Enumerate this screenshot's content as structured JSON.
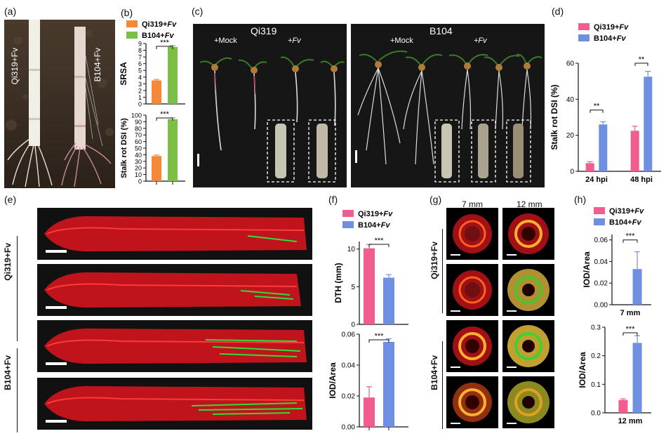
{
  "panels": {
    "a": {
      "label": "(a)",
      "sample_left": "Qi319+Fv",
      "sample_right": "B104+Fv"
    },
    "b": {
      "label": "(b)"
    },
    "c": {
      "label": "(c)",
      "left_title": "Qi319",
      "right_title": "B104",
      "mock": "+Mock",
      "fv": "+Fv"
    },
    "d": {
      "label": "(d)"
    },
    "e": {
      "label": "(e)",
      "group1": "Qi319+Fv",
      "group2": "B104+Fv"
    },
    "f": {
      "label": "(f)"
    },
    "g": {
      "label": "(g)",
      "col1": "7 mm",
      "col2": "12 mm",
      "group1": "Qi319+Fv",
      "group2": "B104+Fv"
    },
    "h": {
      "label": "(h)"
    }
  },
  "colors": {
    "orange": "#f5893a",
    "green": "#7bbf44",
    "pink": "#f25c8e",
    "blue": "#6f8fe0",
    "fluor_red": "#e8101a",
    "fluor_green": "#2fdc3a"
  },
  "chart_data": [
    {
      "id": "b-top",
      "type": "bar",
      "categories": [
        "Qi319+Fv",
        "B104+Fv"
      ],
      "values": [
        3.5,
        8.5
      ],
      "errors": [
        0.15,
        0.2
      ],
      "ylabel": "SRS_A",
      "ylim": [
        0,
        9
      ],
      "yticks": [
        0,
        1,
        2,
        3,
        4,
        5,
        6,
        7,
        8,
        9
      ],
      "significance": "***",
      "legend": [
        "Qi319+Fv",
        "B104+Fv"
      ]
    },
    {
      "id": "b-bottom",
      "type": "bar",
      "categories": [
        "Qi319+Fv",
        "B104+Fv"
      ],
      "values": [
        38,
        94
      ],
      "errors": [
        1.5,
        2
      ],
      "ylabel": "Stalk rot DSI (%)",
      "ylim": [
        0,
        100
      ],
      "yticks": [
        0,
        10,
        20,
        30,
        40,
        50,
        60,
        70,
        80,
        90,
        100
      ],
      "significance": "***"
    },
    {
      "id": "d",
      "type": "bar",
      "categories": [
        "24 hpi",
        "48 hpi"
      ],
      "series": [
        {
          "name": "Qi319+Fv",
          "values": [
            4.5,
            22.5
          ],
          "errors": [
            0.8,
            2.5
          ]
        },
        {
          "name": "B104+Fv",
          "values": [
            26,
            52.5
          ],
          "errors": [
            1.5,
            3
          ]
        }
      ],
      "ylabel": "Stalk rot DSI (%)",
      "ylim": [
        0,
        60
      ],
      "yticks": [
        0,
        20,
        40,
        60
      ],
      "significance": [
        "**",
        "**"
      ]
    },
    {
      "id": "f-top",
      "type": "bar",
      "categories": [
        "Qi319+Fv",
        "B104+Fv"
      ],
      "values": [
        10.1,
        6.2
      ],
      "errors": [
        0.5,
        0.4
      ],
      "ylabel": "DTH (mm)",
      "ylim": [
        0,
        11
      ],
      "yticks": [
        0,
        5,
        10
      ],
      "significance": "***",
      "legend": [
        "Qi319+Fv",
        "B104+Fv"
      ]
    },
    {
      "id": "f-bottom",
      "type": "bar",
      "categories": [
        "Qi319+Fv",
        "B104+Fv"
      ],
      "values": [
        0.019,
        0.055
      ],
      "errors": [
        0.007,
        0.002
      ],
      "ylabel": "IOD/Area",
      "ylim": [
        0,
        0.06
      ],
      "yticks": [
        "0.00",
        "0.02",
        "0.04",
        "0.06"
      ],
      "significance": "***"
    },
    {
      "id": "h-top",
      "type": "bar",
      "categories": [
        "7 mm"
      ],
      "series": [
        {
          "name": "Qi319+Fv",
          "values": [
            0
          ]
        },
        {
          "name": "B104+Fv",
          "values": [
            0.033
          ],
          "errors": [
            0.016
          ]
        }
      ],
      "ylabel": "IOD/Area",
      "ylim": [
        0,
        0.065
      ],
      "yticks": [
        "0.00",
        "0.02",
        "0.04",
        "0.06"
      ],
      "significance": "***",
      "legend": [
        "Qi319+Fv",
        "B104+Fv"
      ]
    },
    {
      "id": "h-bottom",
      "type": "bar",
      "categories": [
        "12 mm"
      ],
      "series": [
        {
          "name": "Qi319+Fv",
          "values": [
            0.045
          ],
          "errors": [
            0.004
          ]
        },
        {
          "name": "B104+Fv",
          "values": [
            0.245
          ],
          "errors": [
            0.025
          ]
        }
      ],
      "ylabel": "IOD/Area",
      "ylim": [
        0,
        0.3
      ],
      "yticks": [
        "0.0",
        "0.1",
        "0.2",
        "0.3"
      ],
      "significance": "***"
    }
  ]
}
